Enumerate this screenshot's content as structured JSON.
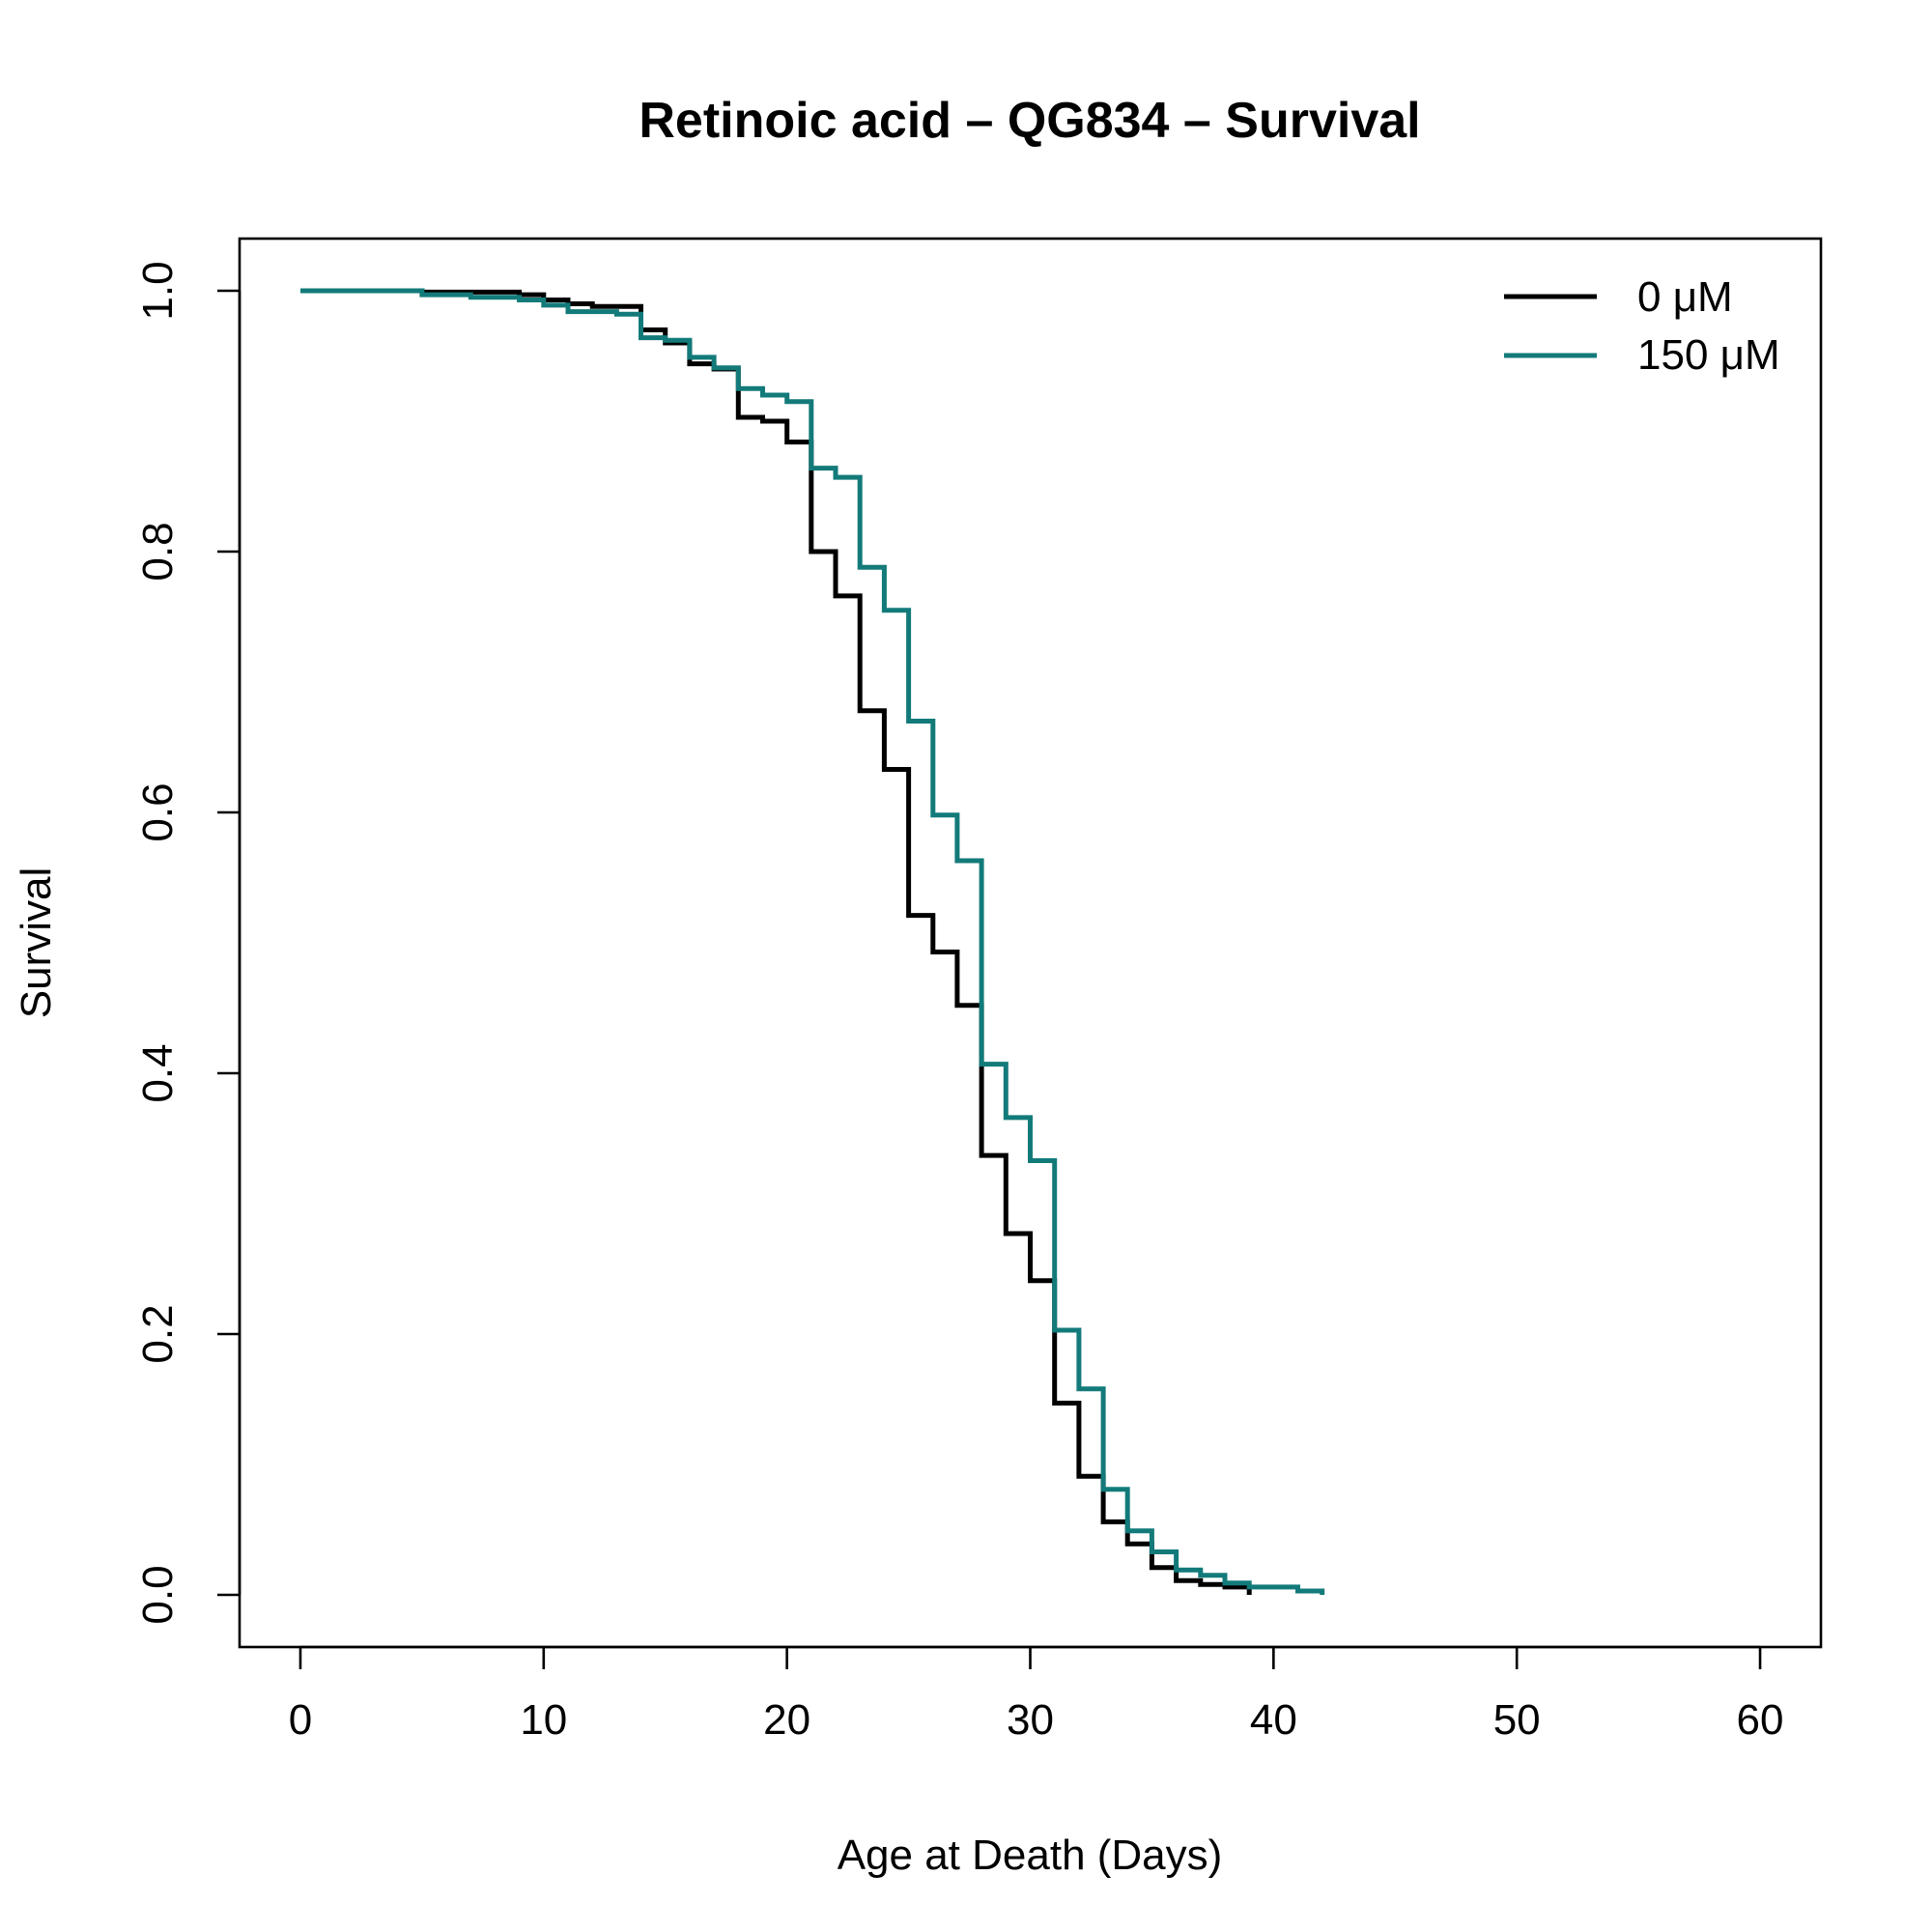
{
  "chart_data": {
    "type": "line",
    "subtype": "step",
    "title": "Retinoic acid – QG834 – Survival",
    "xlabel": "Age at Death (Days)",
    "ylabel": "Survival",
    "xlim": [
      -2.5,
      62.5
    ],
    "ylim": [
      -0.04,
      1.04
    ],
    "x_ticks": [
      0,
      10,
      20,
      30,
      40,
      50,
      60
    ],
    "x_tick_labels": [
      "0",
      "10",
      "20",
      "30",
      "40",
      "50",
      "60"
    ],
    "y_ticks": [
      0.0,
      0.2,
      0.4,
      0.6,
      0.8,
      1.0
    ],
    "y_tick_labels": [
      "0.0",
      "0.2",
      "0.4",
      "0.6",
      "0.8",
      "1.0"
    ],
    "legend_position": "top-right",
    "series": [
      {
        "name": "0 μM",
        "color": "#000000",
        "x": [
          0,
          5,
          9,
          10,
          11,
          12,
          14,
          15,
          16,
          17,
          18,
          19,
          20,
          21,
          22,
          23,
          24,
          25,
          26,
          27,
          28,
          29,
          30,
          31,
          32,
          33,
          34,
          35,
          36,
          37,
          38,
          39
        ],
        "y": [
          1.0,
          0.999,
          0.997,
          0.993,
          0.99,
          0.988,
          0.97,
          0.96,
          0.944,
          0.94,
          0.903,
          0.9,
          0.884,
          0.8,
          0.766,
          0.678,
          0.633,
          0.521,
          0.493,
          0.452,
          0.337,
          0.277,
          0.241,
          0.147,
          0.091,
          0.056,
          0.039,
          0.021,
          0.011,
          0.008,
          0.006,
          0.0
        ]
      },
      {
        "name": "150 μM",
        "color": "#137a7a",
        "x": [
          0,
          5,
          7,
          9,
          10,
          11,
          12,
          13,
          14,
          15,
          16,
          17,
          18,
          19,
          20,
          21,
          22,
          23,
          24,
          25,
          26,
          27,
          28,
          29,
          30,
          31,
          32,
          33,
          34,
          35,
          36,
          37,
          38,
          39,
          40,
          41,
          42
        ],
        "y": [
          1.0,
          0.997,
          0.995,
          0.993,
          0.989,
          0.984,
          0.984,
          0.982,
          0.964,
          0.962,
          0.949,
          0.941,
          0.925,
          0.92,
          0.915,
          0.864,
          0.857,
          0.788,
          0.755,
          0.67,
          0.598,
          0.563,
          0.407,
          0.366,
          0.333,
          0.203,
          0.158,
          0.081,
          0.049,
          0.033,
          0.019,
          0.015,
          0.009,
          0.006,
          0.006,
          0.003,
          0.0
        ]
      }
    ]
  }
}
